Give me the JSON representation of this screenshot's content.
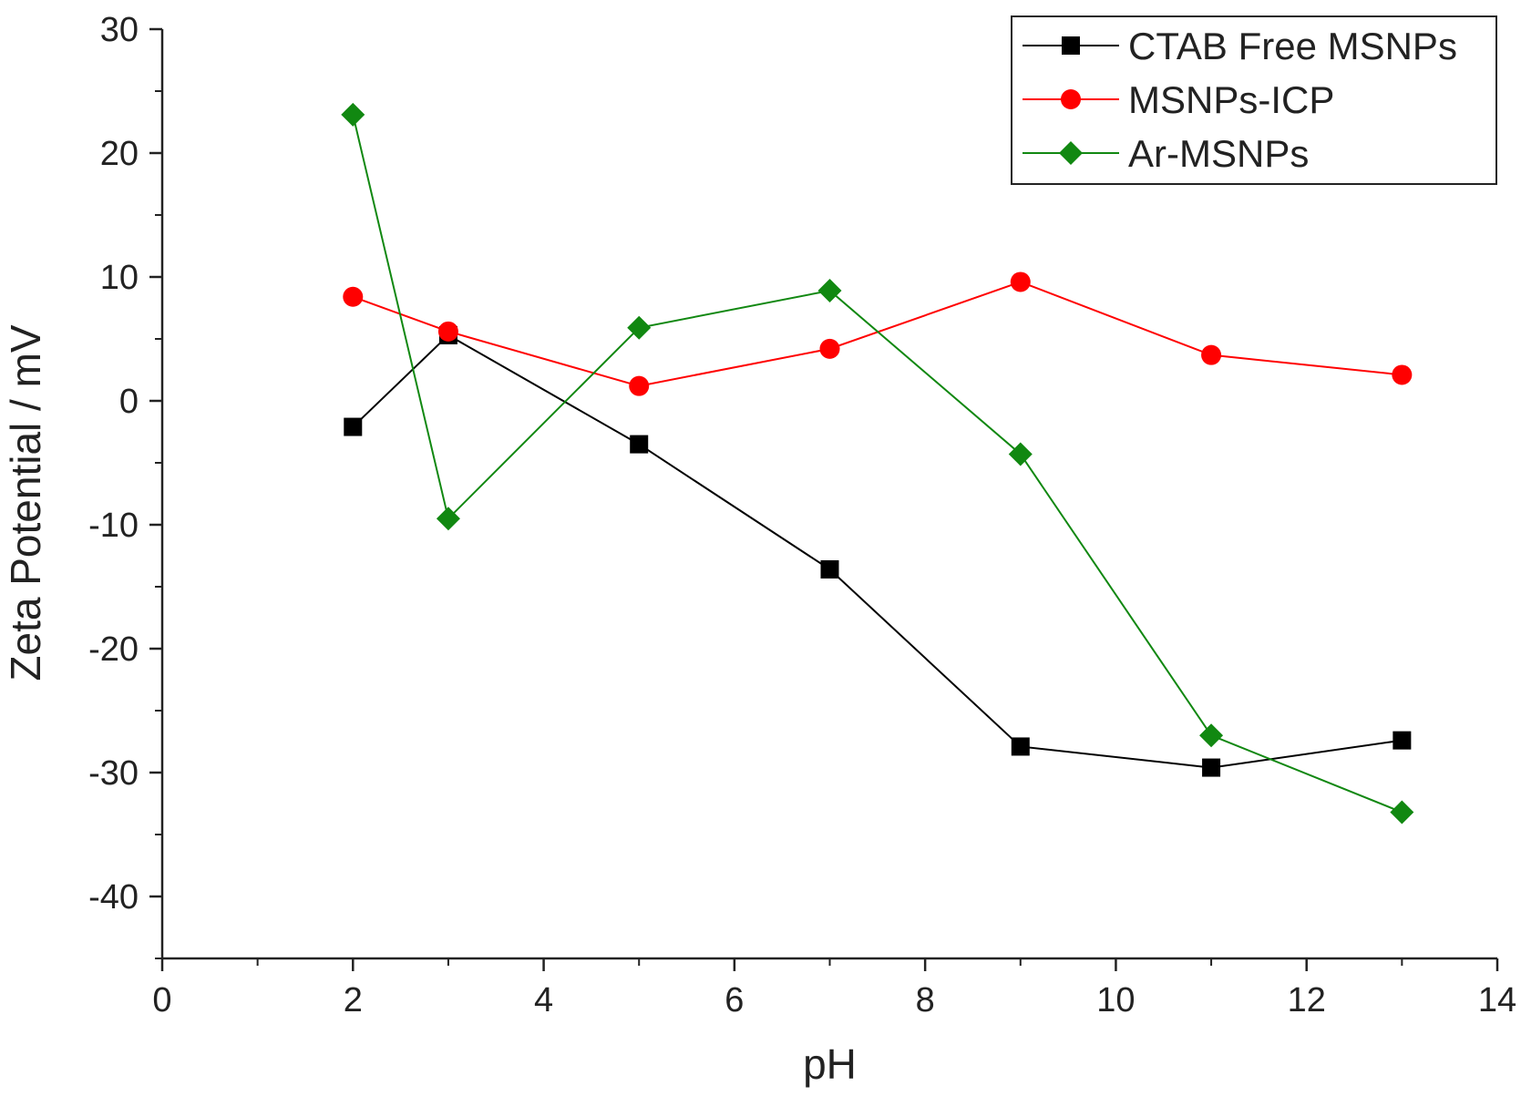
{
  "chart_data": {
    "type": "line",
    "title": "",
    "xlabel": "pH",
    "ylabel": "Zeta Potential / mV",
    "xlim": [
      0,
      14
    ],
    "ylim": [
      -45,
      30
    ],
    "xticks": [
      0,
      2,
      4,
      6,
      8,
      10,
      12,
      14
    ],
    "yticks": [
      -40,
      -30,
      -20,
      -10,
      0,
      10,
      20,
      30
    ],
    "grid": false,
    "legend_position": "top-right",
    "series": [
      {
        "name": "CTAB Free MSNPs",
        "color": "#000000",
        "marker": "square",
        "x": [
          2,
          3,
          5,
          7,
          9,
          11,
          13
        ],
        "y": [
          -2.1,
          5.3,
          -3.5,
          -13.6,
          -27.9,
          -29.6,
          -27.4
        ]
      },
      {
        "name": "MSNPs-ICP",
        "color": "#ff0000",
        "marker": "circle",
        "x": [
          2,
          3,
          5,
          7,
          9,
          11,
          13
        ],
        "y": [
          8.4,
          5.6,
          1.2,
          4.2,
          9.6,
          3.7,
          2.1
        ]
      },
      {
        "name": "Ar-MSNPs",
        "color": "#118811",
        "marker": "diamond",
        "x": [
          2,
          3,
          5,
          7,
          9,
          11,
          13
        ],
        "y": [
          23.1,
          -9.5,
          5.9,
          8.9,
          -4.3,
          -27.0,
          -33.2
        ]
      }
    ]
  }
}
